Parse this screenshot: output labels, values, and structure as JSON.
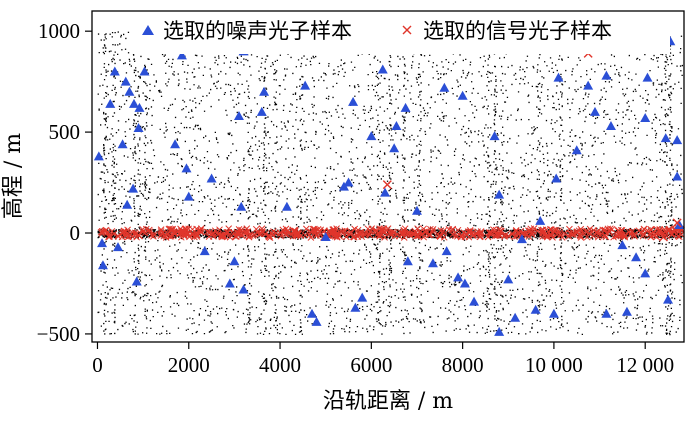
{
  "chart_data": {
    "type": "scatter",
    "xlabel": "沿轨距离 / m",
    "ylabel": "高程 / m",
    "xlim": [
      -120,
      12850
    ],
    "ylim": [
      -540,
      1100
    ],
    "x_ticks": [
      0,
      2000,
      4000,
      6000,
      8000,
      10000,
      12000
    ],
    "x_tick_labels": [
      "0",
      "2000",
      "4000",
      "6000",
      "8000",
      "10 000",
      "12 000"
    ],
    "y_ticks": [
      -500,
      0,
      500,
      1000
    ],
    "y_tick_labels": [
      "−500",
      "0",
      "500",
      "1000"
    ],
    "grid": false,
    "legend": {
      "placement": "top"
    },
    "background_points": {
      "color": "#000000",
      "x_range": [
        0,
        12800
      ],
      "y_range": [
        -500,
        1000
      ],
      "description_hidden": true
    },
    "series": [
      {
        "name": "选取的噪声光子样本",
        "marker": "triangle",
        "color": "#2b4fd6",
        "points": [
          [
            30,
            380
          ],
          [
            100,
            -50
          ],
          [
            120,
            -160
          ],
          [
            280,
            640
          ],
          [
            380,
            800
          ],
          [
            450,
            -70
          ],
          [
            550,
            440
          ],
          [
            620,
            750
          ],
          [
            650,
            140
          ],
          [
            700,
            700
          ],
          [
            780,
            220
          ],
          [
            800,
            640
          ],
          [
            860,
            -240
          ],
          [
            900,
            520
          ],
          [
            920,
            620
          ],
          [
            1030,
            800
          ],
          [
            1700,
            440
          ],
          [
            1850,
            880
          ],
          [
            1950,
            320
          ],
          [
            2000,
            180
          ],
          [
            2150,
            950
          ],
          [
            2350,
            -90
          ],
          [
            2400,
            940
          ],
          [
            2500,
            270
          ],
          [
            2900,
            -250
          ],
          [
            3000,
            -140
          ],
          [
            3100,
            580
          ],
          [
            3150,
            130
          ],
          [
            3200,
            -280
          ],
          [
            3200,
            900
          ],
          [
            3500,
            910
          ],
          [
            3600,
            600
          ],
          [
            3650,
            700
          ],
          [
            4150,
            130
          ],
          [
            4550,
            730
          ],
          [
            4700,
            -400
          ],
          [
            4800,
            -440
          ],
          [
            5000,
            -20
          ],
          [
            5400,
            230
          ],
          [
            5500,
            250
          ],
          [
            5600,
            650
          ],
          [
            5650,
            -370
          ],
          [
            5800,
            -320
          ],
          [
            6000,
            480
          ],
          [
            6250,
            810
          ],
          [
            6250,
            930
          ],
          [
            6300,
            200
          ],
          [
            6500,
            420
          ],
          [
            6550,
            530
          ],
          [
            6750,
            620
          ],
          [
            6800,
            -140
          ],
          [
            7000,
            110
          ],
          [
            7100,
            940
          ],
          [
            7350,
            -150
          ],
          [
            7600,
            720
          ],
          [
            7650,
            -90
          ],
          [
            7900,
            -220
          ],
          [
            8000,
            680
          ],
          [
            8050,
            -250
          ],
          [
            8250,
            -340
          ],
          [
            8700,
            480
          ],
          [
            8800,
            190
          ],
          [
            8800,
            -490
          ],
          [
            9000,
            -230
          ],
          [
            9150,
            -420
          ],
          [
            9300,
            -30
          ],
          [
            9600,
            -380
          ],
          [
            9700,
            60
          ],
          [
            10000,
            -400
          ],
          [
            10050,
            270
          ],
          [
            10100,
            770
          ],
          [
            10500,
            410
          ],
          [
            10750,
            730
          ],
          [
            10900,
            600
          ],
          [
            11150,
            -400
          ],
          [
            11150,
            780
          ],
          [
            11250,
            530
          ],
          [
            11500,
            -60
          ],
          [
            11600,
            -390
          ],
          [
            11800,
            -120
          ],
          [
            12000,
            -200
          ],
          [
            12000,
            570
          ],
          [
            12050,
            770
          ],
          [
            12450,
            470
          ],
          [
            12500,
            -330
          ],
          [
            12550,
            950
          ],
          [
            12700,
            460
          ],
          [
            12700,
            280
          ],
          [
            12750,
            40
          ]
        ]
      },
      {
        "name": "选取的信号光子样本",
        "marker": "x",
        "color": "#e0352b",
        "points": [
          [
            1650,
            940
          ],
          [
            6350,
            240
          ],
          [
            10750,
            890
          ],
          [
            10950,
            1000
          ],
          [
            12700,
            50
          ],
          [
            4300,
            10
          ],
          [
            900,
            -10
          ],
          [
            12400,
            -20
          ]
        ]
      }
    ]
  }
}
